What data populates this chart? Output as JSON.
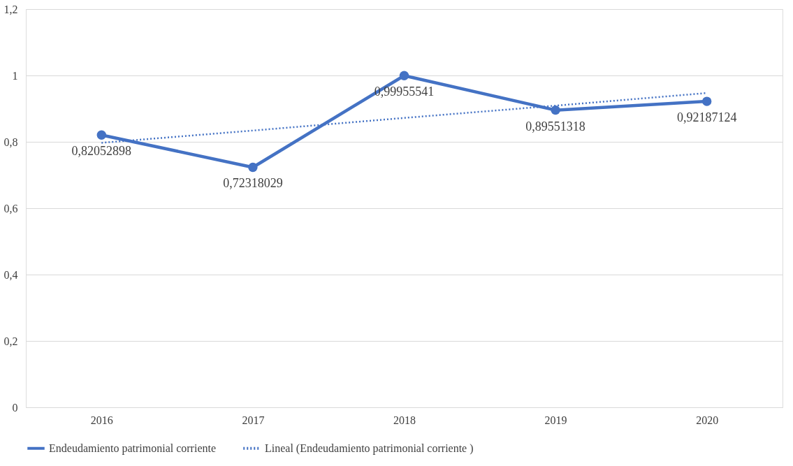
{
  "chart_data": {
    "type": "line",
    "categories": [
      "2016",
      "2017",
      "2018",
      "2019",
      "2020"
    ],
    "series": [
      {
        "name": "Endeudamiento patrimonial corriente",
        "color": "#4472c4",
        "marker": "circle",
        "line_style": "solid",
        "values": [
          0.82052898,
          0.72318029,
          0.99955541,
          0.89551318,
          0.92187124
        ],
        "value_labels": [
          "0,82052898",
          "0,72318029",
          "0,99955541",
          "0,89551318",
          "0,92187124"
        ]
      },
      {
        "name": "Lineal (Endeudamiento patrimonial corriente )",
        "color": "#4472c4",
        "marker": "none",
        "line_style": "dotted",
        "values": [
          0.797,
          0.834,
          0.872,
          0.909,
          0.947
        ]
      }
    ],
    "ylim": [
      0,
      1.2
    ],
    "yticks": [
      0,
      {
        "value": 0.2,
        "label": "0,2"
      },
      {
        "value": 0.4,
        "label": "0,4"
      },
      {
        "value": 0.6,
        "label": "0,6"
      },
      {
        "value": 0.8,
        "label": "0,8"
      },
      1,
      {
        "value": 1.2,
        "label": "1,2"
      }
    ],
    "grid": "y",
    "legend": "bottom"
  }
}
